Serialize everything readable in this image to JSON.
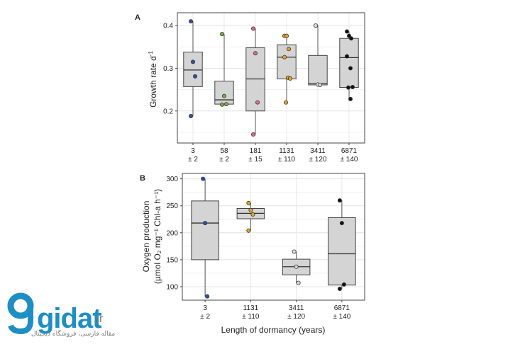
{
  "chart_data": [
    {
      "panel_label": "A",
      "type": "box",
      "ylabel": "Growth rate d",
      "ylabel_sup": "-1",
      "ylim": [
        0.125,
        0.43
      ],
      "yticks": [
        0.2,
        0.3,
        0.4
      ],
      "grid": true,
      "categories": [
        {
          "line1": "3",
          "line2": "± 2",
          "color": "#2f4fa8",
          "box": {
            "min": 0.188,
            "q1": 0.257,
            "median": 0.296,
            "q3": 0.338,
            "max": 0.41
          },
          "points": [
            0.41,
            0.315,
            0.281,
            0.188
          ]
        },
        {
          "line1": "58",
          "line2": "± 2",
          "color": "#7bb241",
          "box": {
            "min": 0.215,
            "q1": 0.216,
            "median": 0.226,
            "q3": 0.27,
            "max": 0.38
          },
          "points": [
            0.38,
            0.235,
            0.216,
            0.215
          ]
        },
        {
          "line1": "181",
          "line2": "± 15",
          "color": "#e36a8f",
          "box": {
            "min": 0.145,
            "q1": 0.2,
            "median": 0.275,
            "q3": 0.348,
            "max": 0.393
          },
          "points": [
            0.393,
            0.335,
            0.22,
            0.145
          ]
        },
        {
          "line1": "1131",
          "line2": "± 110",
          "color": "#e6a620",
          "box": {
            "min": 0.22,
            "q1": 0.275,
            "median": 0.326,
            "q3": 0.355,
            "max": 0.376
          },
          "points": [
            0.376,
            0.376,
            0.345,
            0.326,
            0.278,
            0.276,
            0.22
          ]
        },
        {
          "line1": "3411",
          "line2": "± 120",
          "color": "#dcdcdc",
          "box": {
            "min": 0.26,
            "q1": 0.261,
            "median": 0.264,
            "q3": 0.33,
            "max": 0.4
          },
          "points": [
            0.4,
            0.262,
            0.261
          ]
        },
        {
          "line1": "6871",
          "line2": "± 140",
          "color": "#111111",
          "box": {
            "min": 0.228,
            "q1": 0.255,
            "median": 0.325,
            "q3": 0.37,
            "max": 0.386
          },
          "points": [
            0.386,
            0.376,
            0.37,
            0.328,
            0.3,
            0.256,
            0.255,
            0.228
          ]
        }
      ]
    },
    {
      "panel_label": "B",
      "type": "box",
      "ylabel_line1": "Oxygen production",
      "ylabel_line2": "(µmol O₂ mg⁻¹ Chl-a h⁻¹)",
      "xlabel": "Length of dormancy (years)",
      "ylim": [
        75,
        310
      ],
      "yticks": [
        100,
        150,
        200,
        250,
        300
      ],
      "grid": true,
      "categories": [
        {
          "line1": "3",
          "line2": "± 2",
          "color": "#2f4fa8",
          "box": {
            "min": 82,
            "q1": 150,
            "median": 218,
            "q3": 259,
            "max": 300
          },
          "points": [
            300,
            218,
            82
          ]
        },
        {
          "line1": "1131",
          "line2": "± 110",
          "color": "#e6a620",
          "box": {
            "min": 204,
            "q1": 226,
            "median": 236,
            "q3": 245,
            "max": 255
          },
          "points": [
            255,
            242,
            234,
            204
          ]
        },
        {
          "line1": "3411",
          "line2": "± 120",
          "color": "#dcdcdc",
          "box": {
            "min": 107,
            "q1": 122,
            "median": 137,
            "q3": 151,
            "max": 165
          },
          "points": [
            165,
            137,
            107
          ]
        },
        {
          "line1": "6871",
          "line2": "± 140",
          "color": "#111111",
          "box": {
            "min": 96,
            "q1": 103,
            "median": 161,
            "q3": 228,
            "max": 260
          },
          "points": [
            260,
            218,
            104,
            96
          ]
        }
      ]
    }
  ],
  "watermark": {
    "logo_text": "gidat",
    "logo_suffix": ".ir",
    "tagline": "مقاله فارسی، فروشگاه دیجیتال",
    "color": "#1f8ec2"
  }
}
